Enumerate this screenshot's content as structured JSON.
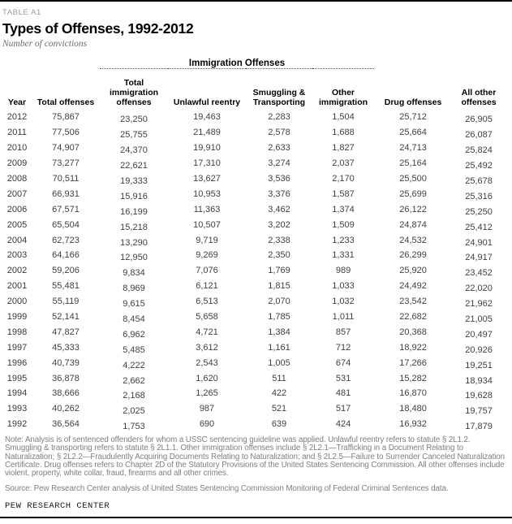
{
  "page": {
    "eyebrow": "TABLE A1",
    "title": "Types of Offenses, 1992-2012",
    "subtitle": "Number of convictions",
    "footer_brand": "PEW RESEARCH CENTER"
  },
  "note": "Note: Analysis is of sentenced offenders for whom a USSC sentencing guideline was applied. Unlawful reentry refers to statute § 2L1.2. Smuggling & transporting refers to statute § 2L1.1. Other immigration offenses include § 2L2.1—Trafficking in a Document Relating to Naturalization; § 2L2.2—Fraudulently Acquiring Documents Relating to Naturalization; and § 2L2.5—Failure to Surrender Canceled Naturalization Certificate. Drug offenses refers to Chapter 2D of the Statutory Provisions of the United States Sentencing Commission. All other offenses include violent, property, white collar, fraud, firearms and all other crimes.",
  "source": "Source: Pew Research Center analysis of United States Sentencing Commission Monitoring of Federal Criminal Sentences data.",
  "chart_data": {
    "type": "table",
    "title": "Types of Offenses, 1992-2012",
    "subtitle": "Number of convictions",
    "group_header": "Immigration Offenses",
    "group_header_spans_columns": [
      "Total immigration offenses",
      "Unlawful reentry",
      "Smuggling & Transporting",
      "Other immigration"
    ],
    "columns": [
      "Year",
      "Total offenses",
      "Total\nimmigration\noffenses",
      "Unlawful reentry",
      "Smuggling &\nTransporting",
      "Other\nimmigration",
      "Drug offenses",
      "All other\noffenses"
    ],
    "rows": [
      [
        "2012",
        "75,867",
        "23,250",
        "19,463",
        "2,283",
        "1,504",
        "25,712",
        "26,905"
      ],
      [
        "2011",
        "77,506",
        "25,755",
        "21,489",
        "2,578",
        "1,688",
        "25,664",
        "26,087"
      ],
      [
        "2010",
        "74,907",
        "24,370",
        "19,910",
        "2,633",
        "1,827",
        "24,713",
        "25,824"
      ],
      [
        "2009",
        "73,277",
        "22,621",
        "17,310",
        "3,274",
        "2,037",
        "25,164",
        "25,492"
      ],
      [
        "2008",
        "70,511",
        "19,333",
        "13,627",
        "3,536",
        "2,170",
        "25,500",
        "25,678"
      ],
      [
        "2007",
        "66,931",
        "15,916",
        "10,953",
        "3,376",
        "1,587",
        "25,699",
        "25,316"
      ],
      [
        "2006",
        "67,571",
        "16,199",
        "11,363",
        "3,462",
        "1,374",
        "26,122",
        "25,250"
      ],
      [
        "2005",
        "65,504",
        "15,218",
        "10,507",
        "3,202",
        "1,509",
        "24,874",
        "25,412"
      ],
      [
        "2004",
        "62,723",
        "13,290",
        "9,719",
        "2,338",
        "1,233",
        "24,532",
        "24,901"
      ],
      [
        "2003",
        "64,166",
        "12,950",
        "9,269",
        "2,350",
        "1,331",
        "26,299",
        "24,917"
      ],
      [
        "2002",
        "59,206",
        "9,834",
        "7,076",
        "1,769",
        "989",
        "25,920",
        "23,452"
      ],
      [
        "2001",
        "55,481",
        "8,969",
        "6,121",
        "1,815",
        "1,033",
        "24,492",
        "22,020"
      ],
      [
        "2000",
        "55,119",
        "9,615",
        "6,513",
        "2,070",
        "1,032",
        "23,542",
        "21,962"
      ],
      [
        "1999",
        "52,141",
        "8,454",
        "5,658",
        "1,785",
        "1,011",
        "22,682",
        "21,005"
      ],
      [
        "1998",
        "47,827",
        "6,962",
        "4,721",
        "1,384",
        "857",
        "20,368",
        "20,497"
      ],
      [
        "1997",
        "45,333",
        "5,485",
        "3,612",
        "1,161",
        "712",
        "18,922",
        "20,926"
      ],
      [
        "1996",
        "40,739",
        "4,222",
        "2,543",
        "1,005",
        "674",
        "17,266",
        "19,251"
      ],
      [
        "1995",
        "36,878",
        "2,662",
        "1,620",
        "511",
        "531",
        "15,282",
        "18,934"
      ],
      [
        "1994",
        "38,666",
        "2,168",
        "1,265",
        "422",
        "481",
        "16,870",
        "19,628"
      ],
      [
        "1993",
        "40,262",
        "2,025",
        "987",
        "521",
        "517",
        "18,480",
        "19,757"
      ],
      [
        "1992",
        "36,564",
        "1,753",
        "690",
        "639",
        "424",
        "16,932",
        "17,879"
      ]
    ]
  }
}
